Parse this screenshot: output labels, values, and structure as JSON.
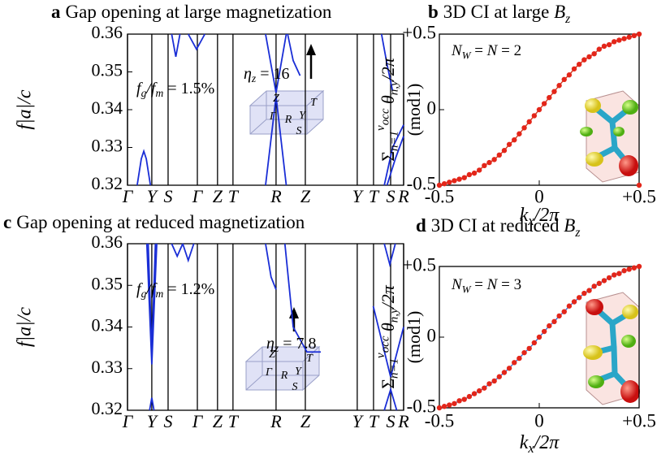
{
  "chart_data": [
    {
      "type": "bands",
      "label": "a",
      "title": "Gap opening at large magnetization",
      "ylabel": "f|a|/c",
      "ylim": [
        0.32,
        0.36
      ],
      "yticks": [
        0.32,
        0.33,
        0.34,
        0.35,
        0.36
      ],
      "xlim": [
        0,
        1
      ],
      "xticks": [
        {
          "value": 0,
          "label": "Γ"
        },
        {
          "value": 0.088,
          "label": "Y"
        },
        {
          "value": 0.147,
          "label": "S"
        },
        {
          "value": 0.253,
          "label": "Γ"
        },
        {
          "value": 0.326,
          "label": "Z"
        },
        {
          "value": 0.382,
          "label": "T"
        },
        {
          "value": 0.538,
          "label": "R"
        },
        {
          "value": 0.644,
          "label": "Z"
        },
        {
          "value": 0.832,
          "label": "Y"
        },
        {
          "value": 0.891,
          "label": "T"
        },
        {
          "value": 0.953,
          "label": "S"
        },
        {
          "value": 1,
          "label": "R"
        }
      ],
      "grid": true,
      "gap_label": [
        {
          "text": "f",
          "style": "italic"
        },
        {
          "text": "g",
          "style": "sub"
        },
        {
          "text": "/",
          "style": "italic"
        },
        {
          "text": "f",
          "style": "italic"
        },
        {
          "text": "m",
          "style": "sub"
        },
        {
          "text": " = 1.5%"
        }
      ],
      "field_label": [
        {
          "text": "η",
          "style": "italic"
        },
        {
          "text": "z",
          "style": "sub"
        },
        {
          "text": " = 16"
        }
      ],
      "inset_labels": [
        "Z",
        "T",
        "Γ",
        "R",
        "Y",
        "S"
      ],
      "series": [
        {
          "color": "#1a2ed6",
          "x": [
            0.035,
            0.05,
            0.059,
            0.068,
            0.083
          ],
          "values": [
            0.32,
            0.327,
            0.329,
            0.327,
            0.32
          ]
        },
        {
          "color": "#1a2ed6",
          "x": [
            0.16,
            0.175,
            0.19
          ],
          "values": [
            0.36,
            0.354,
            0.36
          ]
        },
        {
          "color": "#1a2ed6",
          "x": [
            0.22,
            0.25,
            0.28
          ],
          "values": [
            0.36,
            0.356,
            0.36
          ]
        },
        {
          "color": "#1a2ed6",
          "x": [
            0.5,
            0.538,
            0.575
          ],
          "values": [
            0.36,
            0.3445,
            0.36
          ]
        },
        {
          "color": "#1a2ed6",
          "x": [
            0.5,
            0.538,
            0.575
          ],
          "values": [
            0.32,
            0.3435,
            0.32
          ]
        },
        {
          "color": "#1a2ed6",
          "x": [
            0.58,
            0.6,
            0.625
          ],
          "values": [
            0.36,
            0.353,
            0.349
          ]
        },
        {
          "color": "#1a2ed6",
          "x": [
            0.92,
            0.94,
            0.96
          ],
          "values": [
            0.36,
            0.352,
            0.345
          ]
        },
        {
          "color": "#1a2ed6",
          "x": [
            0.94,
            0.97,
            1
          ],
          "values": [
            0.32,
            0.327,
            0.333
          ]
        },
        {
          "color": "#1a2ed6",
          "x": [
            0.93,
            0.96,
            1
          ],
          "values": [
            0.32,
            0.33,
            0.336
          ]
        }
      ]
    },
    {
      "type": "scatter",
      "label": "b",
      "title": [
        {
          "text": "3D CI at large "
        },
        {
          "text": "B",
          "style": "italic"
        },
        {
          "text": "z",
          "style": "sub"
        }
      ],
      "ylabel": [
        [
          {
            "text": "Σ"
          },
          {
            "text": "n=1",
            "style": "sub"
          },
          {
            "text": "ν",
            "style": "sup"
          },
          {
            "text": "occ",
            "style": "supsub"
          },
          {
            "text": " θ",
            "style": "italic"
          },
          {
            "text": "n,y",
            "style": "sub"
          },
          {
            "text": "/2π",
            "style": "italic"
          }
        ],
        [
          {
            "text": "(mod1)"
          }
        ]
      ],
      "xlabel": [
        {
          "text": "k",
          "style": "italic"
        },
        {
          "text": "x",
          "style": "sub"
        },
        {
          "text": "/2π",
          "style": "italic"
        }
      ],
      "xlim": [
        -0.5,
        0.5
      ],
      "xticks": [
        -0.5,
        0,
        {
          "value": 0.5,
          "label": "+0.5"
        }
      ],
      "ylim": [
        -0.5,
        0.5
      ],
      "yticks": [
        -0.5,
        0,
        {
          "value": 0.5,
          "label": "+0.5"
        }
      ],
      "annotation": [
        {
          "text": "N",
          "style": "italic"
        },
        {
          "text": "W",
          "style": "sub"
        },
        {
          "text": " = "
        },
        {
          "text": "N",
          "style": "italic"
        },
        {
          "text": " = 2"
        }
      ],
      "series": [
        {
          "color": "#e3261a",
          "line_color": "#d13a22",
          "x": [
            -0.5,
            -0.475,
            -0.45,
            -0.425,
            -0.4,
            -0.375,
            -0.35,
            -0.325,
            -0.3,
            -0.275,
            -0.25,
            -0.225,
            -0.2,
            -0.175,
            -0.15,
            -0.125,
            -0.1,
            -0.075,
            -0.05,
            -0.025,
            0,
            0.025,
            0.05,
            0.075,
            0.1,
            0.125,
            0.15,
            0.175,
            0.2,
            0.225,
            0.25,
            0.275,
            0.3,
            0.325,
            0.35,
            0.375,
            0.4,
            0.425,
            0.45,
            0.475,
            0.5
          ],
          "values": [
            -0.5,
            -0.49,
            -0.48,
            -0.47,
            -0.46,
            -0.45,
            -0.43,
            -0.42,
            -0.4,
            -0.37,
            -0.35,
            -0.33,
            -0.3,
            -0.27,
            -0.23,
            -0.2,
            -0.16,
            -0.12,
            -0.08,
            -0.04,
            0,
            0.04,
            0.08,
            0.12,
            0.16,
            0.2,
            0.23,
            0.27,
            0.3,
            0.33,
            0.35,
            0.37,
            0.4,
            0.42,
            0.43,
            0.45,
            0.46,
            0.47,
            0.48,
            0.49,
            0.5
          ]
        },
        {
          "color": "#e3261a",
          "x": [
            0.5
          ],
          "values": [
            -0.5
          ]
        }
      ]
    },
    {
      "type": "bands",
      "label": "c",
      "title": "Gap opening at reduced magnetization",
      "ylabel": "f|a|/c",
      "ylim": [
        0.32,
        0.36
      ],
      "yticks": [
        0.32,
        0.33,
        0.34,
        0.35,
        0.36
      ],
      "xlim": [
        0,
        1
      ],
      "xticks": [
        {
          "value": 0,
          "label": "Γ"
        },
        {
          "value": 0.088,
          "label": "Y"
        },
        {
          "value": 0.147,
          "label": "S"
        },
        {
          "value": 0.253,
          "label": "Γ"
        },
        {
          "value": 0.326,
          "label": "Z"
        },
        {
          "value": 0.382,
          "label": "T"
        },
        {
          "value": 0.538,
          "label": "R"
        },
        {
          "value": 0.644,
          "label": "Z"
        },
        {
          "value": 0.832,
          "label": "Y"
        },
        {
          "value": 0.891,
          "label": "T"
        },
        {
          "value": 0.953,
          "label": "S"
        },
        {
          "value": 1,
          "label": "R"
        }
      ],
      "grid": true,
      "gap_label": [
        {
          "text": "f",
          "style": "italic"
        },
        {
          "text": "g",
          "style": "sub"
        },
        {
          "text": "/",
          "style": "italic"
        },
        {
          "text": "f",
          "style": "italic"
        },
        {
          "text": "m",
          "style": "sub"
        },
        {
          "text": " = 1.2%"
        }
      ],
      "field_label": [
        {
          "text": "η",
          "style": "italic"
        },
        {
          "text": "z",
          "style": "sub"
        },
        {
          "text": " = 7.8"
        }
      ],
      "inset_labels": [
        "Z",
        "T",
        "Γ",
        "R",
        "Y",
        "S"
      ],
      "series": [
        {
          "color": "#1a2ed6",
          "x": [
            0.07,
            0.088,
            0.106
          ],
          "values": [
            0.36,
            0.331,
            0.36
          ]
        },
        {
          "color": "#1a2ed6",
          "x": [
            0.075,
            0.088,
            0.101
          ],
          "values": [
            0.36,
            0.334,
            0.36
          ]
        },
        {
          "color": "#1a2ed6",
          "x": [
            0.08,
            0.088,
            0.096
          ],
          "values": [
            0.32,
            0.323,
            0.32
          ]
        },
        {
          "color": "#1a2ed6",
          "x": [
            0.16,
            0.18,
            0.2
          ],
          "values": [
            0.36,
            0.357,
            0.36
          ]
        },
        {
          "color": "#1a2ed6",
          "x": [
            0.2,
            0.22,
            0.24
          ],
          "values": [
            0.36,
            0.356,
            0.36
          ]
        },
        {
          "color": "#1a2ed6",
          "x": [
            0.5,
            0.52,
            0.538
          ],
          "values": [
            0.36,
            0.352,
            0.349
          ]
        },
        {
          "color": "#1a2ed6",
          "x": [
            0.57,
            0.6,
            0.65,
            0.7
          ],
          "values": [
            0.36,
            0.34,
            0.334,
            0.334
          ]
        },
        {
          "color": "#1a2ed6",
          "x": [
            0.89,
            0.953,
            1
          ],
          "values": [
            0.345,
            0.328,
            0.34
          ]
        },
        {
          "color": "#1a2ed6",
          "x": [
            0.93,
            0.953,
            0.975
          ],
          "values": [
            0.32,
            0.325,
            0.32
          ]
        },
        {
          "color": "#1a2ed6",
          "x": [
            0.93,
            0.95,
            0.97
          ],
          "values": [
            0.36,
            0.355,
            0.36
          ]
        }
      ]
    },
    {
      "type": "scatter",
      "label": "d",
      "title": [
        {
          "text": "3D CI at reduced "
        },
        {
          "text": "B",
          "style": "italic"
        },
        {
          "text": "z",
          "style": "sub"
        }
      ],
      "ylabel": [
        [
          {
            "text": "Σ"
          },
          {
            "text": "n=1",
            "style": "sub"
          },
          {
            "text": "ν",
            "style": "sup"
          },
          {
            "text": "occ",
            "style": "supsub"
          },
          {
            "text": " θ",
            "style": "italic"
          },
          {
            "text": "n,y",
            "style": "sub"
          },
          {
            "text": "/2π",
            "style": "italic"
          }
        ],
        [
          {
            "text": "(mod1)"
          }
        ]
      ],
      "xlabel": [
        {
          "text": "k",
          "style": "italic"
        },
        {
          "text": "x",
          "style": "sub"
        },
        {
          "text": "/2π",
          "style": "italic"
        }
      ],
      "xlim": [
        -0.5,
        0.5
      ],
      "xticks": [
        -0.5,
        0,
        {
          "value": 0.5,
          "label": "+0.5"
        }
      ],
      "ylim": [
        -0.5,
        0.5
      ],
      "yticks": [
        -0.5,
        0,
        {
          "value": 0.5,
          "label": "+0.5"
        }
      ],
      "annotation": [
        {
          "text": "N",
          "style": "italic"
        },
        {
          "text": "W",
          "style": "sub"
        },
        {
          "text": " = "
        },
        {
          "text": "N",
          "style": "italic"
        },
        {
          "text": " = 3"
        }
      ],
      "series": [
        {
          "color": "#e3261a",
          "line_color": "#3f73d0",
          "x": [
            -0.5,
            -0.475,
            -0.45,
            -0.425,
            -0.4,
            -0.375,
            -0.35,
            -0.325,
            -0.3,
            -0.275,
            -0.25,
            -0.225,
            -0.2,
            -0.175,
            -0.15,
            -0.125,
            -0.1,
            -0.075,
            -0.05,
            -0.025,
            0,
            0.025,
            0.05,
            0.075,
            0.1,
            0.125,
            0.15,
            0.175,
            0.2,
            0.225,
            0.25,
            0.275,
            0.3,
            0.325,
            0.35,
            0.375,
            0.4,
            0.425,
            0.45,
            0.475,
            0.5
          ],
          "values": [
            -0.5,
            -0.49,
            -0.48,
            -0.47,
            -0.45,
            -0.44,
            -0.42,
            -0.4,
            -0.38,
            -0.36,
            -0.33,
            -0.31,
            -0.28,
            -0.25,
            -0.22,
            -0.18,
            -0.15,
            -0.11,
            -0.08,
            -0.04,
            0,
            0.04,
            0.08,
            0.11,
            0.15,
            0.18,
            0.22,
            0.25,
            0.28,
            0.31,
            0.33,
            0.36,
            0.38,
            0.4,
            0.42,
            0.44,
            0.45,
            0.47,
            0.48,
            0.49,
            0.5
          ]
        }
      ]
    }
  ]
}
